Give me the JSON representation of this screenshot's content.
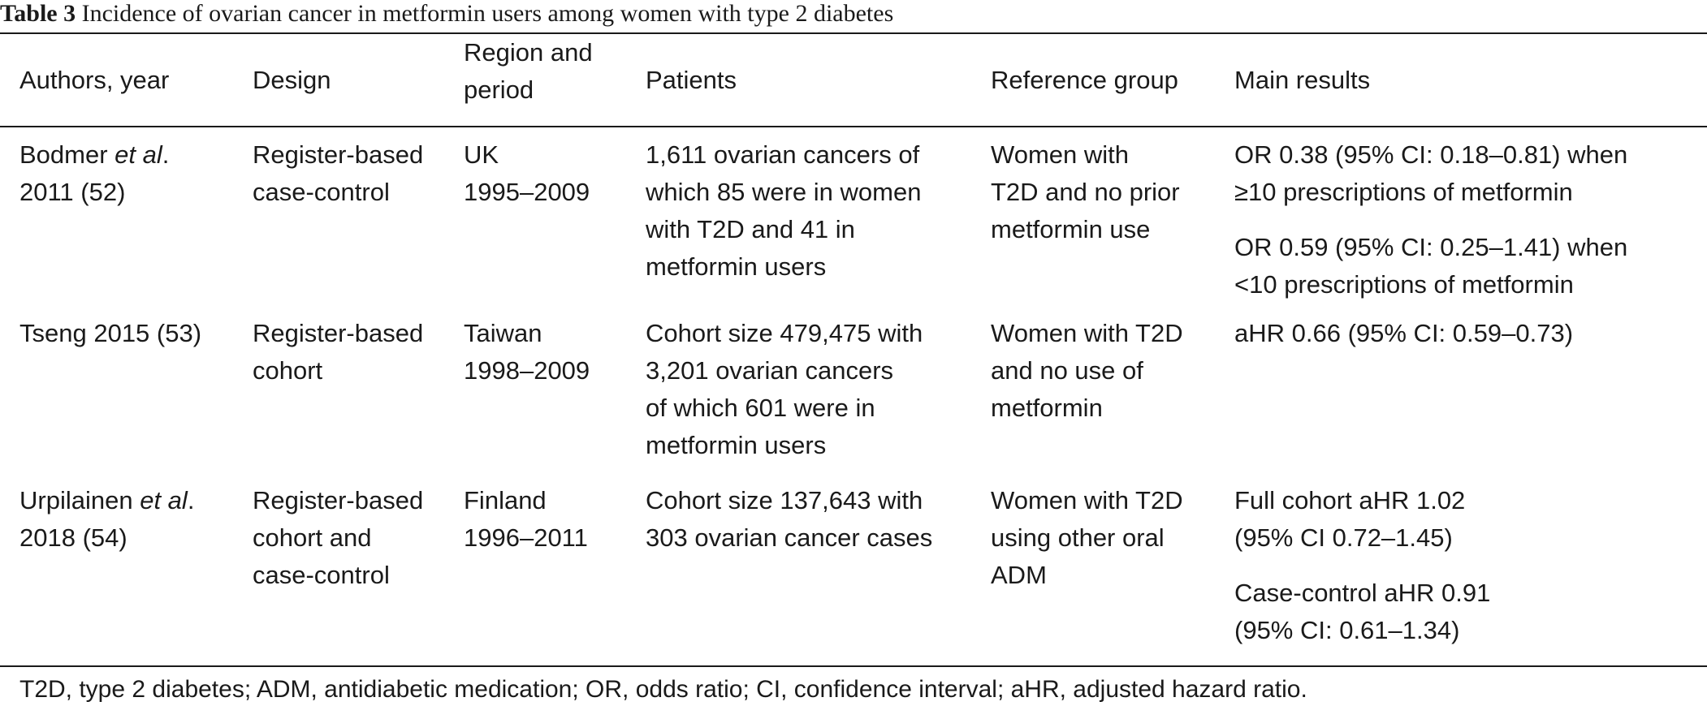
{
  "caption": {
    "label": "Table 3",
    "title": "Incidence of ovarian cancer in metformin users among women with type 2 diabetes"
  },
  "columns": {
    "authors": "Authors, year",
    "design": "Design",
    "region": [
      "Region and",
      "period"
    ],
    "patients": "Patients",
    "reference": "Reference group",
    "results": "Main results"
  },
  "rows": [
    {
      "authors_name": "Bodmer ",
      "authors_etal": "et al",
      "authors_tail": ".",
      "authors_year": "2011 (52)",
      "design": [
        "Register-based",
        "case-control"
      ],
      "region": [
        "UK",
        "1995–2009"
      ],
      "patients": [
        "1,611 ovarian cancers of",
        "which 85 were in women",
        "with T2D and 41 in",
        "metformin users"
      ],
      "reference": [
        "Women with",
        "T2D and no prior",
        "metformin use"
      ],
      "results": [
        [
          "OR 0.38 (95% CI: 0.18–0.81) when",
          "≥10 prescriptions of metformin"
        ],
        [
          "OR 0.59 (95% CI: 0.25–1.41) when",
          "<10 prescriptions of metformin"
        ]
      ]
    },
    {
      "authors_name": "Tseng 2015 (53)",
      "design": [
        "Register-based",
        "cohort"
      ],
      "region": [
        "Taiwan",
        "1998–2009"
      ],
      "patients": [
        "Cohort size 479,475 with",
        "3,201 ovarian cancers",
        "of which 601 were in",
        "metformin users"
      ],
      "reference": [
        "Women with T2D",
        "and no use of",
        "metformin"
      ],
      "results": [
        [
          "aHR 0.66 (95% CI: 0.59–0.73)"
        ]
      ]
    },
    {
      "authors_name": "Urpilainen ",
      "authors_etal": "et al",
      "authors_tail": ".",
      "authors_year": "2018 (54)",
      "design": [
        "Register-based",
        "cohort and",
        "case-control"
      ],
      "region": [
        "Finland",
        "1996–2011"
      ],
      "patients": [
        "Cohort size 137,643 with",
        "303 ovarian cancer cases"
      ],
      "reference": [
        "Women with T2D",
        "using other oral",
        "ADM"
      ],
      "results": [
        [
          "Full cohort aHR 1.02",
          "(95% CI 0.72–1.45)"
        ],
        [
          "Case-control aHR 0.91",
          "(95% CI: 0.61–1.34)"
        ]
      ]
    }
  ],
  "footnote": "T2D, type 2 diabetes; ADM, antidiabetic medication; OR, odds ratio; CI, confidence interval; aHR, adjusted hazard ratio."
}
